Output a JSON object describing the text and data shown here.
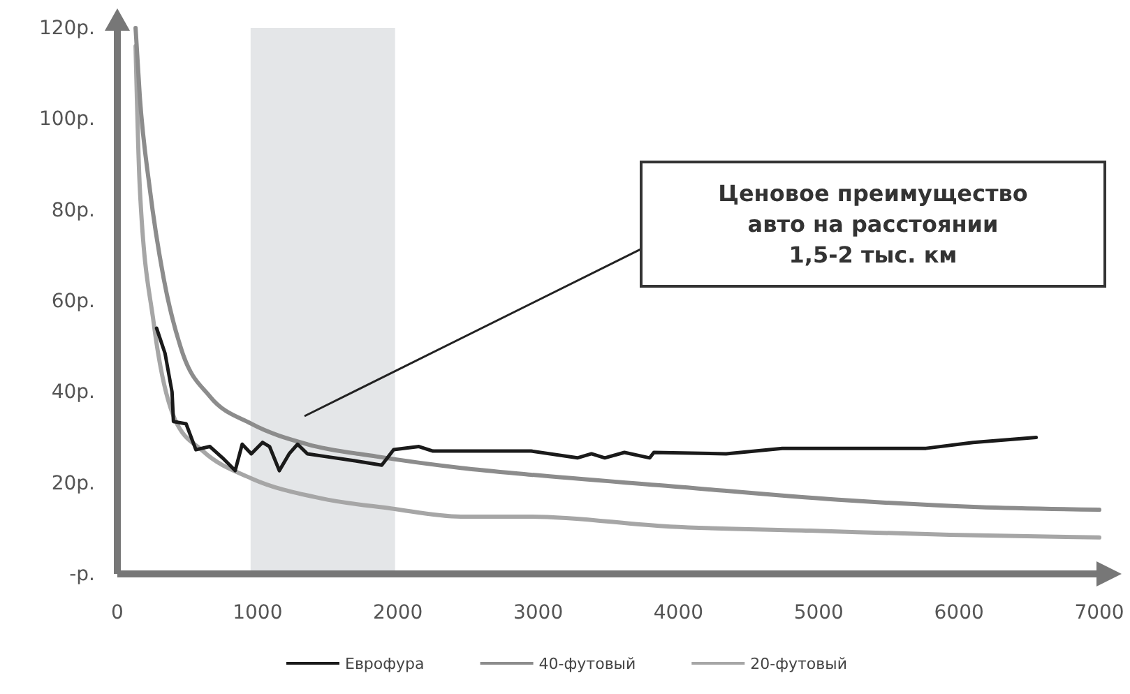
{
  "chart_data": {
    "type": "line",
    "xlim": [
      0,
      7000
    ],
    "xticks": [
      0,
      1000,
      2000,
      3000,
      4000,
      5000,
      6000,
      7000
    ],
    "ylim": [
      0,
      120
    ],
    "yticks": [
      {
        "value": 0,
        "label": "-р."
      },
      {
        "value": 20,
        "label": "20р."
      },
      {
        "value": 40,
        "label": "40р."
      },
      {
        "value": 60,
        "label": "60р."
      },
      {
        "value": 80,
        "label": "80р."
      },
      {
        "value": 100,
        "label": "100р."
      },
      {
        "value": 120,
        "label": "120р."
      }
    ],
    "grid": false,
    "legend": "bottom",
    "marker": "none",
    "line_style": "solid",
    "bands": [
      {
        "axis": "x",
        "from": 950,
        "to": 1980,
        "color": "#e4e6e8"
      }
    ],
    "annotations": [
      "Ценовое преимущество\nавто на расстоянии\n1,5-2 тыс. км"
    ],
    "series": [
      {
        "name": "Еврофура",
        "color": "#1a1a1a",
        "x": [
          280,
          340,
          390,
          400,
          490,
          560,
          660,
          750,
          840,
          890,
          955,
          1035,
          1085,
          1155,
          1225,
          1285,
          1355,
          1485,
          1685,
          1885,
          1970,
          2150,
          2250,
          2950,
          3280,
          3380,
          3475,
          3615,
          3795,
          3825,
          4340,
          4740,
          5765,
          6100,
          6550
        ],
        "values": [
          54,
          48.5,
          40,
          33.5,
          33,
          27.3,
          28,
          25.5,
          22.7,
          28.5,
          26.4,
          28.9,
          28,
          22.7,
          26.4,
          28.5,
          26.4,
          25.8,
          24.9,
          23.9,
          27.3,
          28,
          27,
          27,
          25.5,
          26.4,
          25.5,
          26.7,
          25.5,
          26.7,
          26.4,
          27.6,
          27.6,
          28.9,
          30
        ]
      },
      {
        "name": "40-футовый",
        "color": "#8c8c8c",
        "x": [
          130,
          160,
          230,
          330,
          460,
          660,
          955,
          1355,
          1850,
          2450,
          2950,
          3940,
          5140,
          6135,
          7000
        ],
        "values": [
          120,
          105,
          85,
          65,
          49,
          39,
          33,
          28.5,
          25.8,
          23.3,
          21.8,
          19.3,
          16.3,
          14.7,
          14.1
        ]
      },
      {
        "name": "20-футовый",
        "color": "#a6a6a6",
        "x": [
          130,
          160,
          260,
          410,
          610,
          955,
          1455,
          1950,
          2450,
          2950,
          3940,
          4940,
          5935,
          7000
        ],
        "values": [
          116,
          85,
          55,
          34,
          27,
          21,
          16.6,
          14.4,
          12.6,
          12.6,
          10.4,
          9.5,
          8.6,
          8.0
        ]
      }
    ]
  }
}
